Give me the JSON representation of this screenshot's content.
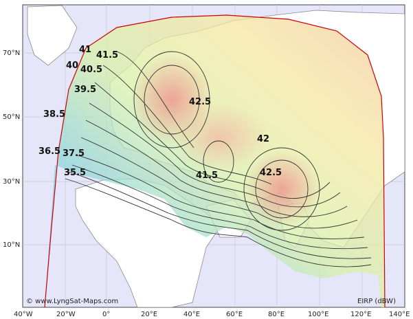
{
  "map": {
    "credit": "© www.LyngSat-Maps.com",
    "unit_label": "EIRP (dBW)",
    "x_ticks": [
      "40°W",
      "20°W",
      "0°",
      "20°E",
      "40°E",
      "60°E",
      "80°E",
      "100°E",
      "120°E",
      "140°E"
    ],
    "y_ticks": [
      "70°N",
      "50°N",
      "30°N",
      "10°N"
    ],
    "contour_labels": [
      "41",
      "41.5",
      "40",
      "40.5",
      "39.5",
      "38.5",
      "36.5",
      "37.5",
      "35.5",
      "42.5",
      "42",
      "41.5",
      "42.5"
    ],
    "colors": {
      "ocean": "#e6e6fa",
      "land": "#ffffff",
      "coverage_edge": "#cc0000",
      "grid": "#c8c8c8"
    }
  }
}
